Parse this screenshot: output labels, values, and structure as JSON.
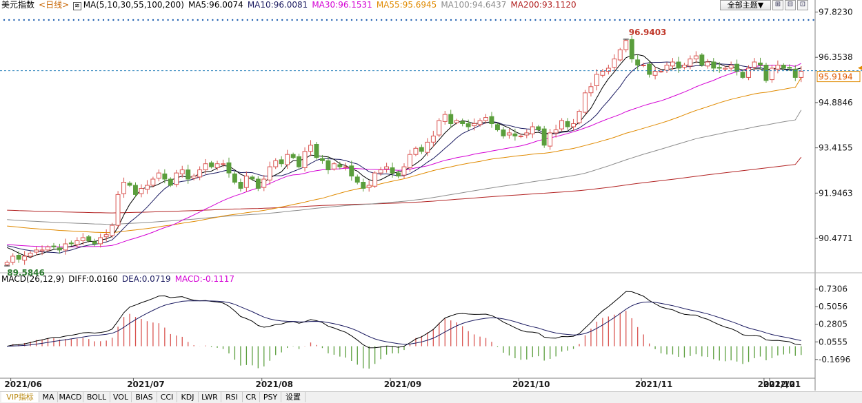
{
  "header": {
    "title": "美元指数",
    "period": "<日线>",
    "ma_label": "MA(5,10,30,55,100,200)",
    "ma5": "MA5:96.0074",
    "ma10": "MA10:96.0081",
    "ma30": "MA30:96.1531",
    "ma55": "MA55:95.6945",
    "ma100": "MA100:94.6437",
    "ma200": "MA200:93.1120",
    "theme_button": "全部主题▼"
  },
  "colors": {
    "up": "#d9534f",
    "down": "#5a9e3c",
    "ma5": "#000000",
    "ma10": "#1a1a60",
    "ma30": "#d400d4",
    "ma55": "#e08a00",
    "ma100": "#8c8c8c",
    "ma200": "#b22222",
    "current_price_line": "#1e7bb8",
    "axis_text": "#1a1a1a"
  },
  "macd_header": {
    "name": "MACD(26,12,9)",
    "diff": "DIFF:0.0160",
    "dea": "DEA:0.0719",
    "macd": "MACD:-0.1117"
  },
  "annotations": {
    "high_label": "96.9403",
    "low_label": "89.5846",
    "current_price": "95.9194"
  },
  "tabs": [
    "VIP指标",
    "MA",
    "MACD",
    "BOLL",
    "VOL",
    "BIAS",
    "CCI",
    "KDJ",
    "LWR",
    "RSI",
    "CR",
    "PSY",
    "设置"
  ],
  "chart_data": [
    {
      "type": "candlestick",
      "title": "美元指数",
      "price_ticks": [
        97.823,
        96.3538,
        94.8846,
        93.4155,
        91.9463,
        90.4771
      ],
      "price_tick_labels": [
        "97.8230",
        "96.3538",
        "94.8846",
        "93.4155",
        "91.9463",
        "90.4771"
      ],
      "ylim": [
        89.45,
        97.9
      ],
      "x_labels": [
        "2021/06",
        "2021/07",
        "2021/08",
        "2021/09",
        "2021/10",
        "2021/11",
        "2021/12",
        "2022/01"
      ],
      "close": [
        89.7,
        89.9,
        89.8,
        89.9,
        90.0,
        90.1,
        90.1,
        90.2,
        90.2,
        90.1,
        90.3,
        90.3,
        90.4,
        90.5,
        90.4,
        90.3,
        90.5,
        90.6,
        90.9,
        91.9,
        92.3,
        92.2,
        91.9,
        92.1,
        92.2,
        92.4,
        92.6,
        92.4,
        92.2,
        92.6,
        92.7,
        92.4,
        92.5,
        92.7,
        92.9,
        92.8,
        92.9,
        92.9,
        92.6,
        92.3,
        92.1,
        92.5,
        92.4,
        92.1,
        92.4,
        92.8,
        93.0,
        92.9,
        93.2,
        93.1,
        92.8,
        93.3,
        93.5,
        93.1,
        93.0,
        92.7,
        92.9,
        92.8,
        92.8,
        92.5,
        92.3,
        92.1,
        92.2,
        92.6,
        92.7,
        92.8,
        92.6,
        92.5,
        92.8,
        93.2,
        93.4,
        93.3,
        93.6,
        93.8,
        94.3,
        94.5,
        94.2,
        94.3,
        94.2,
        94.1,
        94.2,
        94.3,
        94.4,
        94.2,
        94.0,
        93.8,
        93.9,
        93.8,
        93.8,
        93.9,
        94.1,
        94.0,
        93.5,
        93.9,
        94.0,
        94.3,
        94.1,
        94.2,
        94.6,
        95.2,
        95.4,
        95.8,
        95.9,
        96.0,
        96.3,
        96.6,
        96.9,
        96.3,
        96.1,
        96.1,
        95.8,
        95.9,
        95.9,
        96.1,
        96.2,
        96.0,
        96.1,
        96.3,
        96.4,
        96.1,
        96.2,
        96.0,
        96.0,
        96.0,
        96.1,
        95.9,
        95.7,
        96.0,
        96.2,
        96.1,
        95.6,
        96.0,
        96.1,
        96.0,
        96.0,
        95.7,
        95.9
      ],
      "ma_values_latest": {
        "MA5": 96.0074,
        "MA10": 96.0081,
        "MA30": 96.1531,
        "MA55": 95.6945,
        "MA100": 94.6437,
        "MA200": 93.112
      },
      "highest": 96.9403,
      "lowest": 89.5846,
      "current": 95.9194
    },
    {
      "type": "line",
      "title": "MACD(26,12,9)",
      "y_ticks": [
        0.7306,
        0.5056,
        0.2805,
        0.0555,
        -0.1696
      ],
      "y_tick_labels": [
        "0.7306",
        "0.5056",
        "0.2805",
        "0.0555",
        "-0.1696"
      ],
      "ylim": [
        -0.4,
        0.78
      ],
      "series": [
        {
          "name": "DIFF",
          "latest": 0.016
        },
        {
          "name": "DEA",
          "latest": 0.0719
        },
        {
          "name": "MACD",
          "latest": -0.1117
        }
      ]
    }
  ]
}
